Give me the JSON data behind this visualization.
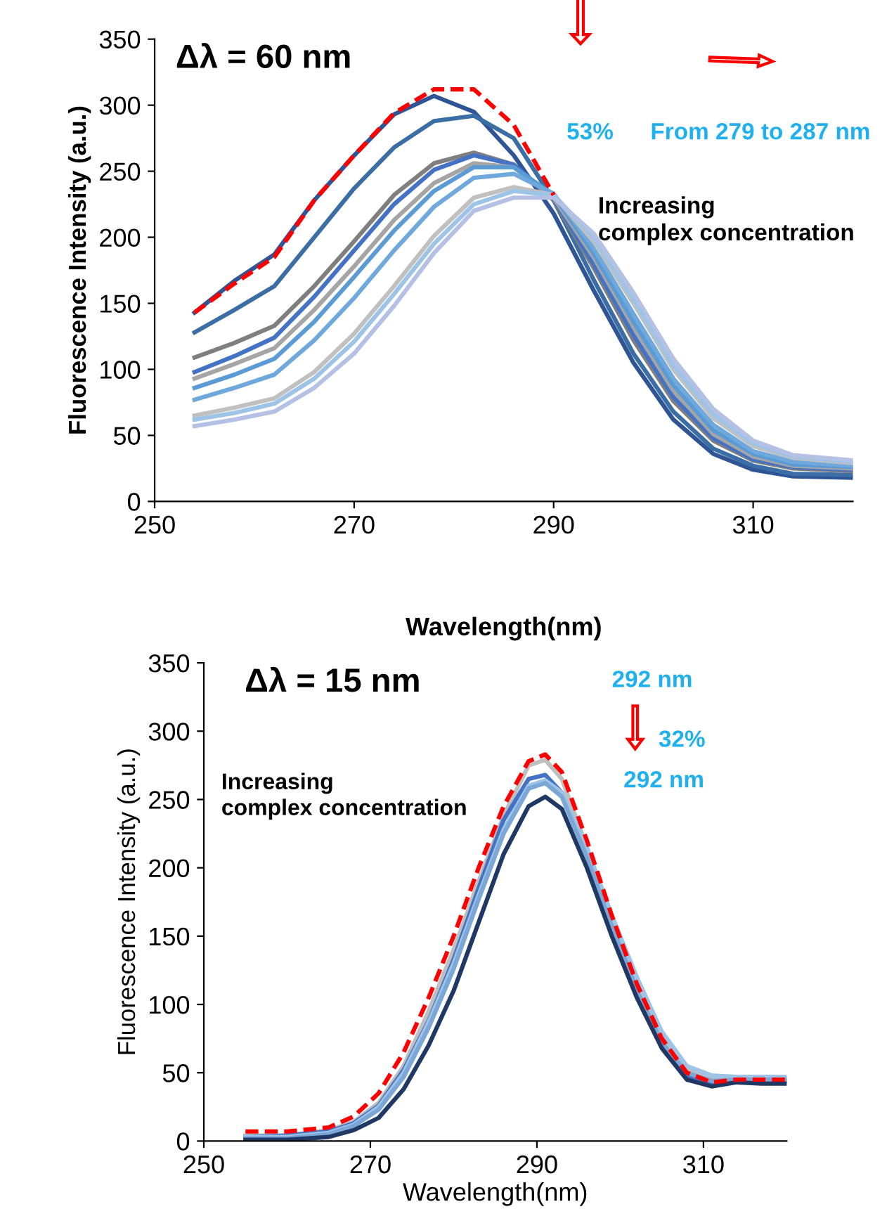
{
  "chart_data": [
    {
      "type": "line",
      "xlabel": "Wavelength(nm)",
      "ylabel": "Fluorescence Intensity (a.u.)",
      "x": [
        254,
        258,
        262,
        266,
        270,
        274,
        278,
        282,
        286,
        290,
        294,
        298,
        302,
        306,
        310,
        314,
        320
      ],
      "xlim": [
        250,
        320
      ],
      "xticks": [
        250,
        270,
        290,
        310
      ],
      "ylim": [
        0,
        350
      ],
      "yticks": [
        0,
        50,
        100,
        150,
        200,
        250,
        300,
        350
      ],
      "annotations": [
        "Δλ = 60 nm",
        "53%",
        "From 279 to 287 nm",
        "Increasing\ncomplex concentration"
      ],
      "series": [
        {
          "color": "#2f5597",
          "values": [
            143,
            167,
            187,
            228,
            262,
            293,
            307,
            295,
            262,
            218,
            160,
            105,
            62,
            36,
            24,
            19,
            18
          ]
        },
        {
          "color": "#3a6ea5",
          "values": [
            128,
            145,
            163,
            200,
            237,
            268,
            288,
            292,
            275,
            228,
            168,
            112,
            68,
            40,
            27,
            21,
            20
          ]
        },
        {
          "color": "#7f7f7f",
          "values": [
            109,
            120,
            133,
            163,
            197,
            232,
            256,
            264,
            255,
            228,
            177,
            122,
            76,
            46,
            31,
            25,
            23
          ]
        },
        {
          "color": "#4472c4",
          "values": [
            98,
            110,
            124,
            155,
            190,
            225,
            251,
            262,
            255,
            229,
            180,
            126,
            79,
            48,
            32,
            26,
            24
          ]
        },
        {
          "color": "#a5a5a5",
          "values": [
            93,
            104,
            116,
            145,
            178,
            213,
            241,
            256,
            253,
            230,
            185,
            132,
            84,
            51,
            34,
            27,
            25
          ]
        },
        {
          "color": "#5b9bd5",
          "values": [
            86,
            96,
            108,
            136,
            170,
            205,
            235,
            253,
            253,
            232,
            188,
            136,
            88,
            54,
            36,
            28,
            26
          ]
        },
        {
          "color": "#6fa8dc",
          "values": [
            77,
            86,
            96,
            122,
            154,
            190,
            223,
            245,
            248,
            233,
            192,
            142,
            93,
            58,
            38,
            30,
            27
          ]
        },
        {
          "color": "#c0c0c0",
          "values": [
            65,
            71,
            78,
            98,
            127,
            163,
            201,
            230,
            238,
            232,
            197,
            150,
            100,
            63,
            42,
            33,
            29
          ]
        },
        {
          "color": "#9dc3e6",
          "values": [
            62,
            67,
            74,
            93,
            121,
            157,
            195,
            225,
            235,
            232,
            200,
            153,
            103,
            66,
            44,
            34,
            30
          ]
        },
        {
          "color": "#b4c0e4",
          "values": [
            57,
            62,
            68,
            86,
            112,
            148,
            188,
            220,
            230,
            230,
            203,
            158,
            108,
            70,
            46,
            35,
            31
          ]
        },
        {
          "color": "#ff0000",
          "line_style": "dashed",
          "values": [
            143,
            165,
            185,
            228,
            262,
            294,
            312,
            312,
            285,
            232,
            null,
            null,
            null,
            null,
            null,
            null,
            null
          ]
        }
      ]
    },
    {
      "type": "line",
      "xlabel": "Wavelength(nm)",
      "ylabel": "Fluorescence Intensity (a.u.)",
      "x": [
        255,
        260,
        265,
        268,
        271,
        274,
        277,
        280,
        283,
        286,
        289,
        291,
        293,
        296,
        299,
        302,
        305,
        308,
        311,
        314,
        317,
        320
      ],
      "xlim": [
        250,
        320
      ],
      "xticks": [
        250,
        270,
        290,
        310
      ],
      "ylim": [
        0,
        350
      ],
      "yticks": [
        0,
        50,
        100,
        150,
        200,
        250,
        300,
        350
      ],
      "annotations": [
        "Δλ = 15 nm",
        "292 nm",
        "32%",
        "292 nm",
        "Increasing\ncomplex concentration"
      ],
      "series": [
        {
          "color": "#bfbfbf",
          "values": [
            4,
            4,
            8,
            14,
            28,
            55,
            95,
            140,
            190,
            238,
            275,
            279,
            265,
            215,
            160,
            112,
            75,
            52,
            45,
            46,
            46,
            46
          ]
        },
        {
          "color": "#4472c4",
          "values": [
            3,
            4,
            7,
            13,
            26,
            52,
            88,
            133,
            185,
            235,
            265,
            268,
            255,
            210,
            158,
            110,
            72,
            48,
            42,
            44,
            44,
            44
          ]
        },
        {
          "color": "#9dc3e6",
          "values": [
            3,
            3,
            6,
            12,
            25,
            50,
            87,
            130,
            180,
            228,
            260,
            264,
            255,
            215,
            165,
            120,
            80,
            55,
            48,
            47,
            47,
            47
          ]
        },
        {
          "color": "#7ba7d7",
          "values": [
            2,
            2,
            5,
            11,
            23,
            47,
            83,
            126,
            177,
            225,
            258,
            262,
            252,
            208,
            157,
            110,
            72,
            50,
            44,
            45,
            45,
            45
          ]
        },
        {
          "color": "#1f3864",
          "values": [
            1,
            1,
            3,
            8,
            17,
            38,
            70,
            110,
            160,
            210,
            245,
            252,
            243,
            200,
            150,
            105,
            68,
            45,
            40,
            43,
            42,
            42
          ]
        },
        {
          "color": "#ff0000",
          "line_style": "dashed",
          "values": [
            7,
            7,
            10,
            18,
            35,
            65,
            105,
            150,
            200,
            245,
            278,
            283,
            270,
            220,
            165,
            115,
            75,
            50,
            43,
            45,
            45,
            45
          ]
        }
      ]
    }
  ]
}
